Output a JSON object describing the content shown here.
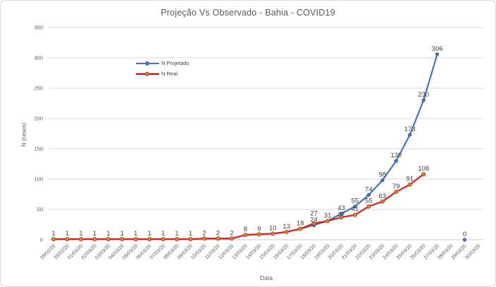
{
  "chart_data": {
    "type": "line",
    "title": "Projeção Vs Observado - Bahia - COVID19",
    "xlabel": "Data",
    "ylabel": "N (casos)",
    "ylim": [
      0,
      350
    ],
    "ytick_step": 50,
    "grid": true,
    "legend_position": "inside-top-left",
    "categories": [
      "28/02/20",
      "29/02/20",
      "01/03/20",
      "02/03/20",
      "03/03/20",
      "04/03/20",
      "05/03/20",
      "06/03/20",
      "07/03/20",
      "08/03/20",
      "09/03/20",
      "10/03/20",
      "11/03/20",
      "12/03/20",
      "13/03/20",
      "14/03/20",
      "15/03/20",
      "16/03/20",
      "17/03/20",
      "18/03/20",
      "19/03/20",
      "20/03/20",
      "21/03/20",
      "22/03/20",
      "23/03/20",
      "24/03/20",
      "25/03/20",
      "26/03/20",
      "27/03/20",
      "28/03/20",
      "29/03/20",
      "30/03/20"
    ],
    "series": [
      {
        "name": "N Projetado",
        "line_color": "#4472C4",
        "marker_fill": "#4472C4",
        "marker_stroke": "#2F5597",
        "values": [
          1,
          1,
          1,
          1,
          1,
          1,
          1,
          1,
          1,
          1,
          1,
          2,
          2,
          2,
          8,
          9,
          10,
          13,
          18,
          24,
          31,
          43,
          55,
          74,
          98,
          130,
          173,
          230,
          306,
          null,
          0,
          null
        ]
      },
      {
        "name": "N Real",
        "line_color": "#E02020",
        "legend_line_color": "#C00000",
        "marker_fill": "#ED7D31",
        "marker_stroke": "#8C4608",
        "values": [
          1,
          1,
          1,
          1,
          1,
          1,
          1,
          1,
          1,
          1,
          1,
          2,
          2,
          2,
          8,
          9,
          10,
          13,
          18,
          27,
          31,
          37,
          41,
          55,
          63,
          79,
          91,
          108,
          null,
          null,
          null,
          null
        ]
      }
    ],
    "colors": {
      "grid": "#D9D9D9",
      "axis_line": "#C9C9C9",
      "tick_text": "#595959",
      "data_label": "#404040",
      "title_text": "#595959"
    }
  }
}
